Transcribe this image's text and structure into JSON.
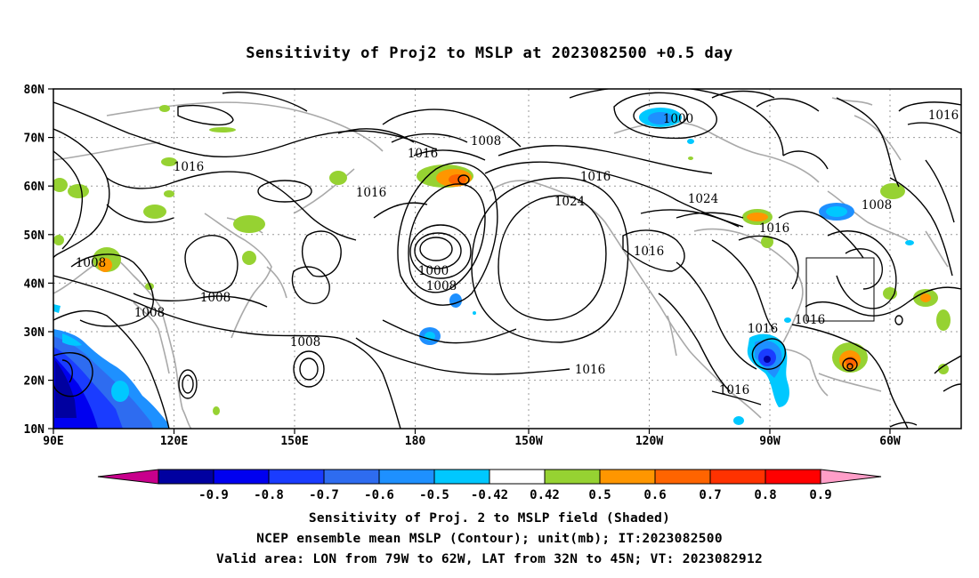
{
  "title": "Sensitivity of Proj2 to MSLP at 2023082500 +0.5 day",
  "map": {
    "lat_labels": [
      "80N",
      "70N",
      "60N",
      "50N",
      "40N",
      "30N",
      "20N",
      "10N"
    ],
    "lon_labels": [
      "90E",
      "120E",
      "150E",
      "180",
      "150W",
      "120W",
      "90W",
      "60W"
    ],
    "valid_box": {
      "lon_from": "79W",
      "lon_to": "62W",
      "lat_from": "32N",
      "lat_to": "45N"
    }
  },
  "contour_labels": [
    {
      "id": "c1",
      "text": "1000"
    },
    {
      "id": "c2",
      "text": "1016"
    },
    {
      "id": "c3",
      "text": "1008"
    },
    {
      "id": "c4",
      "text": "1016"
    },
    {
      "id": "c5",
      "text": "1016"
    },
    {
      "id": "c6",
      "text": "1016"
    },
    {
      "id": "c7",
      "text": "1024"
    },
    {
      "id": "c8",
      "text": "1024"
    },
    {
      "id": "c9",
      "text": "1016"
    },
    {
      "id": "c10",
      "text": "1016"
    },
    {
      "id": "c11",
      "text": "1008"
    },
    {
      "id": "c12",
      "text": "1008"
    },
    {
      "id": "c13",
      "text": "1008"
    },
    {
      "id": "c14",
      "text": "1008"
    },
    {
      "id": "c15",
      "text": "1008"
    },
    {
      "id": "c16",
      "text": "1000"
    },
    {
      "id": "c17",
      "text": "1008"
    },
    {
      "id": "c18",
      "text": "1016"
    },
    {
      "id": "c19",
      "text": "1016"
    },
    {
      "id": "c20",
      "text": "1016"
    },
    {
      "id": "c21",
      "text": "1016"
    },
    {
      "id": "c22",
      "text": "1016"
    }
  ],
  "colorbar": {
    "labels": [
      "-0.9",
      "-0.8",
      "-0.7",
      "-0.6",
      "-0.5",
      "-0.42",
      "0.42",
      "0.5",
      "0.6",
      "0.7",
      "0.8",
      "0.9"
    ],
    "colors": [
      "#0000a0",
      "#0000f0",
      "#1a3cff",
      "#2e6cf0",
      "#1e90ff",
      "#00c8ff",
      "#ffffff",
      "#96d232",
      "#ff9600",
      "#ff6400",
      "#ff3200",
      "#ff0000"
    ],
    "low_arrow_color": "#c8008c",
    "high_arrow_color": "#ff9ec8"
  },
  "footer": {
    "line1": "Sensitivity of Proj. 2 to MSLP field (Shaded)",
    "line2": "NCEP ensemble mean MSLP (Contour); unit(mb); IT:2023082500",
    "line3": "Valid area: LON from 79W to 62W, LAT from 32N to 45N; VT: 2023082912"
  }
}
